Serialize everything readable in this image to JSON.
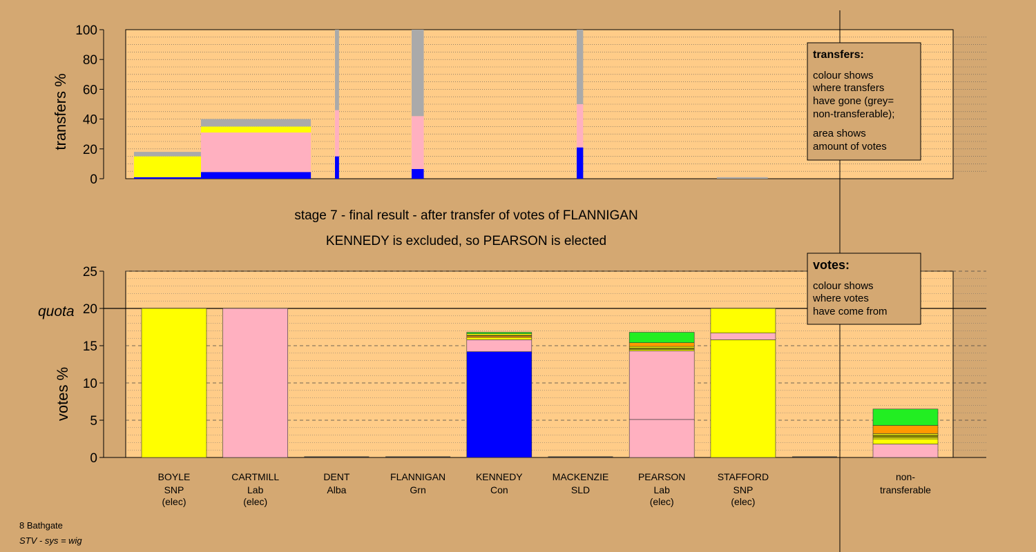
{
  "colors": {
    "background": "#d4a872",
    "panel": "#ffcc88",
    "snp": "#ffff00",
    "lab": "#ffb0c0",
    "con": "#0000ff",
    "grn": "#22ee22",
    "sld": "#ff9900",
    "alba": "#888800",
    "nontransferable": "#aaaaaa"
  },
  "caption": {
    "line1": "stage 7 - final result - after transfer of votes of FLANNIGAN",
    "line2": "KENNEDY is excluded, so PEARSON is elected"
  },
  "footer": {
    "ward": "8 Bathgate",
    "system": "STV - sys = wig"
  },
  "legends": {
    "transfers": {
      "title": "transfers:",
      "lines": [
        "colour shows",
        "where transfers",
        "have gone (grey=",
        "non-transferable);",
        "area shows",
        "amount of votes"
      ]
    },
    "votes": {
      "title": "votes:",
      "lines": [
        "colour shows",
        "where votes",
        "have come from"
      ]
    }
  },
  "chart_data": [
    {
      "type": "bar",
      "title": "",
      "ylabel": "transfers %",
      "ylim": [
        0,
        100
      ],
      "yticks": [
        0,
        20,
        40,
        60,
        80,
        100
      ],
      "grid": true,
      "legend_placement": "top-right",
      "bars": [
        {
          "id": "boyle",
          "width_share": 0.99,
          "segments": [
            {
              "party": "con",
              "value": 1
            },
            {
              "party": "snp",
              "value": 14
            },
            {
              "party": "nontransferable",
              "value": 3
            }
          ]
        },
        {
          "id": "cartmill",
          "width_share": 1.36,
          "segments": [
            {
              "party": "con",
              "value": 4.5
            },
            {
              "party": "lab",
              "value": 26.5
            },
            {
              "party": "snp",
              "value": 4
            },
            {
              "party": "nontransferable",
              "value": 5
            }
          ]
        },
        {
          "id": "dent",
          "width_share": 0.05,
          "segments": [
            {
              "party": "con",
              "value": 15
            },
            {
              "party": "lab",
              "value": 31
            },
            {
              "party": "nontransferable",
              "value": 54
            }
          ]
        },
        {
          "id": "flannigan",
          "width_share": 0.15,
          "segments": [
            {
              "party": "con",
              "value": 6.5
            },
            {
              "party": "lab",
              "value": 35.5
            },
            {
              "party": "nontransferable",
              "value": 58
            }
          ]
        },
        {
          "id": "mackenzie",
          "width_share": 0.08,
          "segments": [
            {
              "party": "con",
              "value": 21
            },
            {
              "party": "lab",
              "value": 29
            },
            {
              "party": "nontransferable",
              "value": 50
            }
          ]
        },
        {
          "id": "stafford",
          "width_share": 0.63,
          "segments": [
            {
              "party": "nontransferable",
              "value": 1
            }
          ]
        }
      ]
    },
    {
      "type": "bar",
      "title": "",
      "ylabel": "votes %",
      "ylim": [
        0,
        25
      ],
      "yticks": [
        0,
        5,
        10,
        15,
        20,
        25
      ],
      "quota": 20,
      "quota_label": "quota",
      "grid": true,
      "legend_placement": "top-right",
      "candidates": [
        {
          "name": "BOYLE",
          "party": "SNP",
          "status": "(elec)",
          "segments": [
            {
              "party": "snp",
              "value": 20
            }
          ]
        },
        {
          "name": "CARTMILL",
          "party": "Lab",
          "status": "(elec)",
          "segments": [
            {
              "party": "lab",
              "value": 20
            }
          ]
        },
        {
          "name": "DENT",
          "party": "Alba",
          "status": "",
          "segments": []
        },
        {
          "name": "FLANNIGAN",
          "party": "Grn",
          "status": "",
          "segments": []
        },
        {
          "name": "KENNEDY",
          "party": "Con",
          "status": "",
          "segments": [
            {
              "party": "con",
              "value": 14.2
            },
            {
              "party": "lab",
              "value": 1.6
            },
            {
              "party": "snp",
              "value": 0.3
            },
            {
              "party": "sld",
              "value": 0.2
            },
            {
              "party": "alba",
              "value": 0.1
            },
            {
              "party": "snp",
              "value": 0.2
            },
            {
              "party": "grn",
              "value": 0.2
            }
          ]
        },
        {
          "name": "MACKENZIE",
          "party": "SLD",
          "status": "",
          "segments": []
        },
        {
          "name": "PEARSON",
          "party": "Lab",
          "status": "(elec)",
          "segments": [
            {
              "party": "lab",
              "value": 5.1
            },
            {
              "party": "lab",
              "value": 9.2
            },
            {
              "party": "snp",
              "value": 0.2
            },
            {
              "party": "alba",
              "value": 0.2
            },
            {
              "party": "snp",
              "value": 0.2
            },
            {
              "party": "sld",
              "value": 0.5
            },
            {
              "party": "grn",
              "value": 1.4
            }
          ]
        },
        {
          "name": "STAFFORD",
          "party": "SNP",
          "status": "(elec)",
          "segments": [
            {
              "party": "snp",
              "value": 15.8
            },
            {
              "party": "lab",
              "value": 0.9
            },
            {
              "party": "snp",
              "value": 3.3
            }
          ]
        }
      ],
      "nontransferable": {
        "label_line1": "non-",
        "label_line2": "transferable",
        "segments": [
          {
            "party": "lab",
            "value": 1.8
          },
          {
            "party": "snp",
            "value": 0.7
          },
          {
            "party": "snp",
            "value": 0.2
          },
          {
            "party": "alba",
            "value": 0.3
          },
          {
            "party": "snp",
            "value": 0.2
          },
          {
            "party": "sld",
            "value": 1.1
          },
          {
            "party": "grn",
            "value": 2.2
          }
        ]
      }
    }
  ]
}
